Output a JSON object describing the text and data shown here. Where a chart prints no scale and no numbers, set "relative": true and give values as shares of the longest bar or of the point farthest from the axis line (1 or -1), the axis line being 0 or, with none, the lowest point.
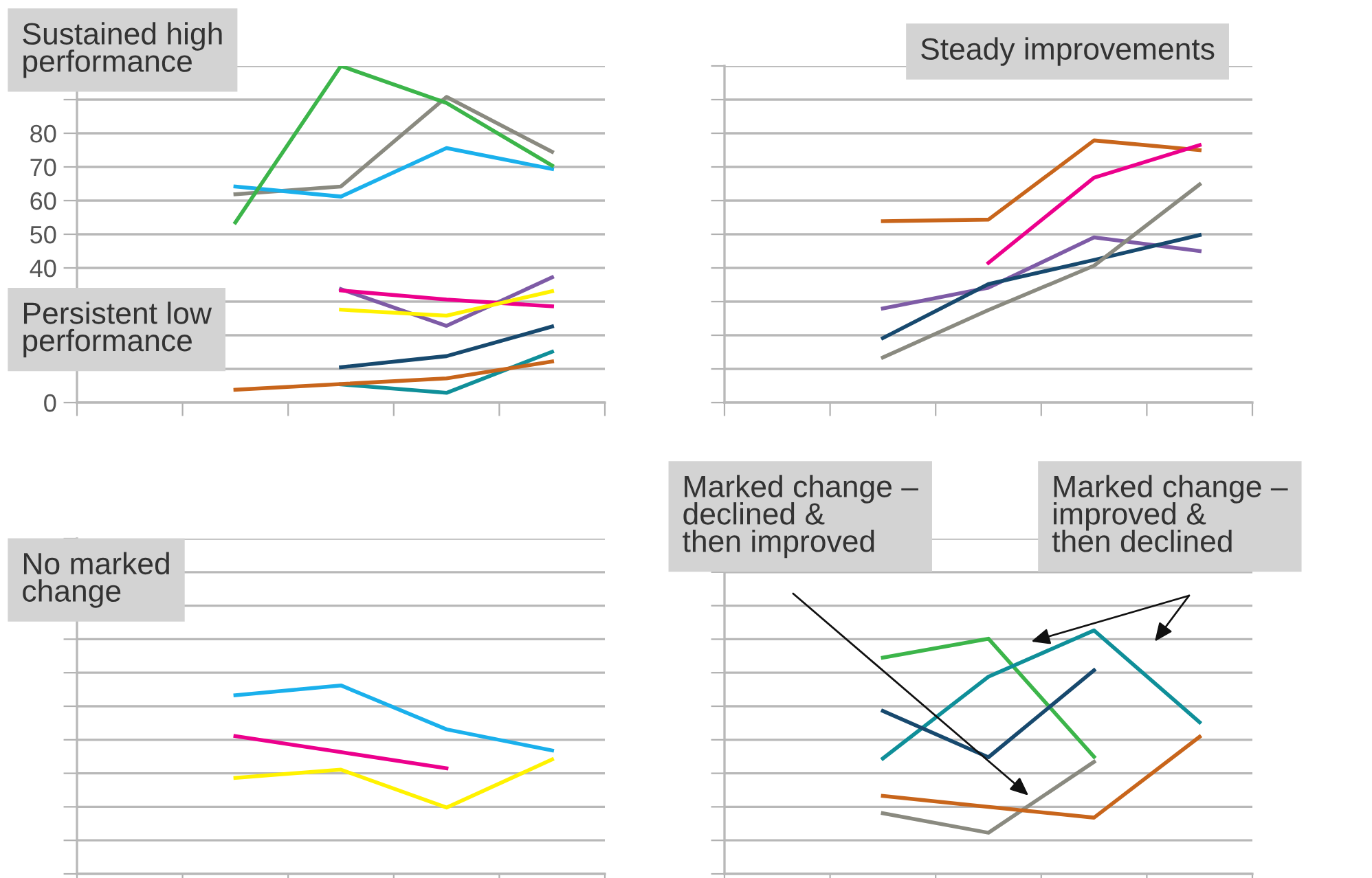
{
  "chart_data": [
    {
      "type": "line",
      "title": "Sustained high\nperformance",
      "annotations": [
        "Persistent low\nperformance"
      ],
      "categories": [
        null,
        null,
        null,
        null,
        null
      ],
      "ylim": [
        0,
        100
      ],
      "yticks": [
        0,
        {
          "value": 10,
          "label": null
        },
        {
          "value": 20,
          "label": null
        },
        {
          "value": 30,
          "label": null
        },
        40,
        50,
        60,
        70,
        80,
        {
          "value": 90,
          "label": null
        },
        {
          "value": 100,
          "label": null
        }
      ],
      "tick_labels": "y",
      "grid": "y",
      "line_style": "solid",
      "marker": "none",
      "series": [
        {
          "color": "#8a8a80",
          "values": [
            null,
            61.9,
            64.2,
            90.8,
            74.5
          ]
        },
        {
          "color": "#1ab0ec",
          "values": [
            null,
            64.2,
            61.2,
            75.6,
            69.4
          ]
        },
        {
          "color": "#3cb54a",
          "values": [
            null,
            53.5,
            100,
            89,
            70.4
          ]
        },
        {
          "color": "#7e5ba6",
          "values": [
            null,
            null,
            33.7,
            22.8,
            37.2
          ]
        },
        {
          "color": "#ec008c",
          "values": [
            null,
            null,
            33.3,
            30.6,
            28.6
          ]
        },
        {
          "color": "#fff200",
          "values": [
            null,
            null,
            27.6,
            25.8,
            33.1
          ]
        },
        {
          "color": "#17496e",
          "values": [
            null,
            null,
            10.5,
            13.8,
            22.6
          ]
        },
        {
          "color": "#0f8f99",
          "values": [
            null,
            null,
            5.4,
            2.9,
            15.1
          ]
        },
        {
          "color": "#c8651b",
          "values": [
            null,
            3.8,
            5.5,
            7.2,
            12.2
          ]
        }
      ]
    },
    {
      "type": "line",
      "title": "Steady improvements",
      "relative": true,
      "categories": [
        null,
        null,
        null,
        null,
        null
      ],
      "tick_labels": false,
      "grid": "y",
      "line_style": "solid",
      "marker": "none",
      "series": [
        {
          "color": "#c8651b",
          "values": [
            null,
            0.692,
            0.698,
            1,
            0.963
          ]
        },
        {
          "color": "#ec008c",
          "values": [
            null,
            null,
            0.533,
            0.858,
            0.982
          ]
        },
        {
          "color": "#7e5ba6",
          "values": [
            null,
            0.359,
            0.438,
            0.63,
            0.578
          ]
        },
        {
          "color": "#17496e",
          "values": [
            null,
            0.246,
            0.452,
            0.544,
            0.639
          ]
        },
        {
          "color": "#8a8a80",
          "values": [
            null,
            0.172,
            0.353,
            0.522,
            0.832
          ]
        }
      ]
    },
    {
      "type": "line",
      "title": "No marked\nchange",
      "relative": true,
      "categories": [
        null,
        null,
        null,
        null,
        null
      ],
      "tick_labels": false,
      "grid": "y",
      "line_style": "solid",
      "marker": "none",
      "series": [
        {
          "color": "#1ab0ec",
          "values": [
            null,
            0.948,
            1,
            0.767,
            0.655
          ]
        },
        {
          "color": "#ec008c",
          "values": [
            null,
            0.731,
            0.646,
            0.56,
            null
          ]
        },
        {
          "color": "#fff200",
          "values": [
            null,
            0.509,
            0.553,
            0.352,
            0.607
          ]
        }
      ]
    },
    {
      "type": "line",
      "relative": true,
      "annotations": [
        "Marked change –\ndeclined &\nthen improved",
        "Marked change –\nimproved &\nthen declined"
      ],
      "categories": [
        null,
        null,
        null,
        null,
        null
      ],
      "tick_labels": false,
      "grid": "y",
      "line_style": "solid",
      "marker": "none",
      "series": [
        {
          "color": "#3cb54a",
          "values": [
            null,
            0.888,
            0.966,
            0.481,
            null
          ]
        },
        {
          "color": "#0f8f99",
          "values": [
            null,
            0.474,
            0.81,
            1,
            0.623
          ]
        },
        {
          "color": "#17496e",
          "values": [
            null,
            0.669,
            0.479,
            0.836,
            null
          ]
        },
        {
          "color": "#8a8a80",
          "values": [
            null,
            0.249,
            0.169,
            0.46,
            null
          ]
        },
        {
          "color": "#c8651b",
          "values": [
            null,
            0.32,
            0.275,
            0.231,
            0.563
          ]
        }
      ]
    }
  ]
}
